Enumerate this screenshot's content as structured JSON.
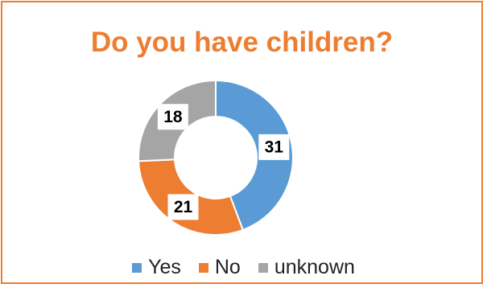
{
  "chart_data": {
    "type": "pie",
    "title": "Do you have children?",
    "categories": [
      "Yes",
      "No",
      "unknown"
    ],
    "values": [
      31,
      21,
      18
    ],
    "colors": [
      "#5B9BD5",
      "#ED7D31",
      "#A5A5A5"
    ],
    "donut": true,
    "legend_position": "bottom"
  }
}
